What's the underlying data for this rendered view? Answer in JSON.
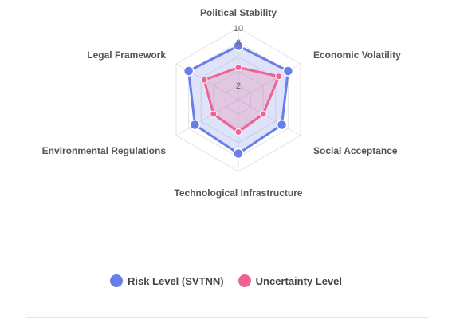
{
  "chart_data": {
    "type": "radar",
    "axes": [
      "Political Stability",
      "Economic Volatility",
      "Social Acceptance",
      "Technological Infrastructure",
      "Environmental Regulations",
      "Legal Framework"
    ],
    "rmin": 0,
    "rmax": 10,
    "ticks": [
      "2",
      "",
      "",
      "8",
      "10"
    ],
    "grid": true,
    "legend_position": "bottom",
    "series": [
      {
        "name": "Risk Level (SVTNN)",
        "values": [
          7.5,
          8.0,
          7.0,
          7.5,
          7.0,
          8.0
        ],
        "color": "#6a7ee8",
        "fill": "rgba(106,126,232,0.22)"
      },
      {
        "name": "Uncertainty Level",
        "values": [
          4.5,
          6.5,
          4.0,
          4.5,
          4.0,
          5.5
        ],
        "color": "#f06292",
        "fill": "rgba(240,98,146,0.22)"
      }
    ]
  }
}
